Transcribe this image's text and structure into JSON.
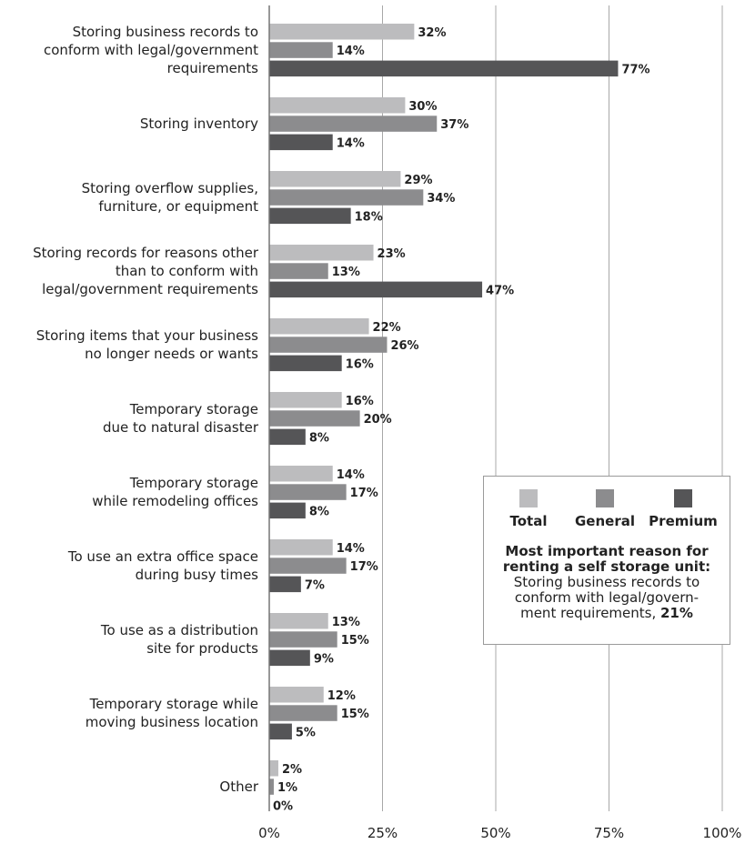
{
  "chart_data": {
    "type": "bar",
    "orientation": "horizontal",
    "categories": [
      [
        "Storing business records to",
        "conform with legal/government",
        "requirements"
      ],
      [
        "Storing inventory"
      ],
      [
        "Storing overflow supplies,",
        "furniture, or equipment"
      ],
      [
        "Storing records for reasons other",
        "than to conform with",
        "legal/government requirements"
      ],
      [
        "Storing items that your business",
        "no longer needs or wants"
      ],
      [
        "Temporary storage",
        "due to natural disaster"
      ],
      [
        "Temporary storage",
        "while remodeling offices"
      ],
      [
        "To use an extra office space",
        "during busy times"
      ],
      [
        "To use as a distribution",
        "site for products"
      ],
      [
        "Temporary storage while",
        "moving business location"
      ],
      [
        "Other"
      ]
    ],
    "series": [
      {
        "name": "Total",
        "color": "#bcbcbe",
        "values": [
          32,
          30,
          29,
          23,
          22,
          16,
          14,
          14,
          13,
          12,
          2
        ]
      },
      {
        "name": "General",
        "color": "#8c8c8e",
        "values": [
          14,
          37,
          34,
          13,
          26,
          20,
          17,
          17,
          15,
          15,
          1
        ]
      },
      {
        "name": "Premium",
        "color": "#555557",
        "values": [
          77,
          14,
          18,
          47,
          16,
          8,
          8,
          7,
          9,
          5,
          0
        ]
      }
    ],
    "value_labels": [
      [
        "32%",
        "30%",
        "29%",
        "23%",
        "22%",
        "16%",
        "14%",
        "14%",
        "13%",
        "12%",
        "2%"
      ],
      [
        "14%",
        "37%",
        "34%",
        "13%",
        "26%",
        "20%",
        "17%",
        "17%",
        "15%",
        "15%",
        "1%"
      ],
      [
        "77%",
        "14%",
        "18%",
        "47%",
        "16%",
        "8%",
        "8%",
        "7%",
        "9%",
        "5%",
        "0%"
      ]
    ],
    "xlim": [
      0,
      100
    ],
    "xticks": [
      0,
      25,
      50,
      75,
      100
    ],
    "xtick_labels": [
      "0%",
      "25%",
      "50%",
      "75%",
      "100%"
    ],
    "grid": true,
    "legend_position": "right"
  },
  "legend_box": {
    "items": [
      {
        "label": "Total",
        "color": "#bcbcbe"
      },
      {
        "label": "General",
        "color": "#8c8c8e"
      },
      {
        "label": "Premium",
        "color": "#555557"
      }
    ],
    "note_heading": [
      "Most important reason for",
      "renting a self storage unit:"
    ],
    "note_body": [
      "Storing business records to",
      "conform with legal/govern-",
      "ment requirements, "
    ],
    "note_value": "21%"
  }
}
